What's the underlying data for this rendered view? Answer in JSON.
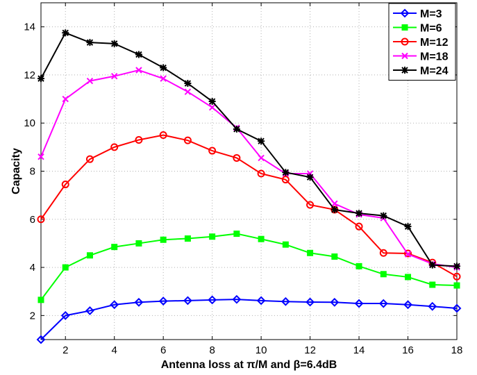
{
  "chart_data": {
    "type": "line",
    "title": "",
    "xlabel": "Antenna loss at π/M and β=6.4dB",
    "ylabel": "Capacity",
    "xlim": [
      1,
      18
    ],
    "ylim": [
      1,
      15
    ],
    "xticks": [
      2,
      4,
      6,
      8,
      10,
      12,
      14,
      16,
      18
    ],
    "yticks": [
      2,
      4,
      6,
      8,
      10,
      12,
      14
    ],
    "grid": true,
    "legend_position": "top-right",
    "x": [
      1,
      2,
      3,
      4,
      5,
      6,
      7,
      8,
      9,
      10,
      11,
      12,
      13,
      14,
      15,
      16,
      17,
      18
    ],
    "series": [
      {
        "name": "M=3",
        "color": "#0000ff",
        "marker": "diamond",
        "values": [
          1.0,
          2.0,
          2.2,
          2.45,
          2.55,
          2.6,
          2.62,
          2.65,
          2.67,
          2.62,
          2.58,
          2.56,
          2.55,
          2.5,
          2.5,
          2.45,
          2.38,
          2.3
        ]
      },
      {
        "name": "M=6",
        "color": "#00ff00",
        "marker": "square",
        "values": [
          2.65,
          4.0,
          4.5,
          4.85,
          5.0,
          5.15,
          5.2,
          5.28,
          5.4,
          5.18,
          4.95,
          4.6,
          4.45,
          4.05,
          3.72,
          3.6,
          3.28,
          3.25
        ]
      },
      {
        "name": "M=12",
        "color": "#ff0000",
        "marker": "circle",
        "values": [
          6.0,
          7.45,
          8.5,
          9.0,
          9.3,
          9.5,
          9.28,
          8.85,
          8.55,
          7.9,
          7.65,
          6.6,
          6.4,
          5.7,
          4.6,
          4.58,
          4.2,
          3.62
        ]
      },
      {
        "name": "M=18",
        "color": "#ff00ff",
        "marker": "x",
        "values": [
          8.6,
          11.0,
          11.75,
          11.95,
          12.2,
          11.85,
          11.3,
          10.65,
          9.8,
          8.55,
          7.9,
          7.9,
          6.65,
          6.2,
          6.05,
          4.55,
          4.15,
          4.0
        ]
      },
      {
        "name": "M=24",
        "color": "#000000",
        "marker": "asterisk",
        "values": [
          11.85,
          13.75,
          13.35,
          13.3,
          12.85,
          12.3,
          11.65,
          10.9,
          9.75,
          9.25,
          7.95,
          7.75,
          6.4,
          6.25,
          6.15,
          5.7,
          4.1,
          4.05
        ]
      }
    ]
  }
}
